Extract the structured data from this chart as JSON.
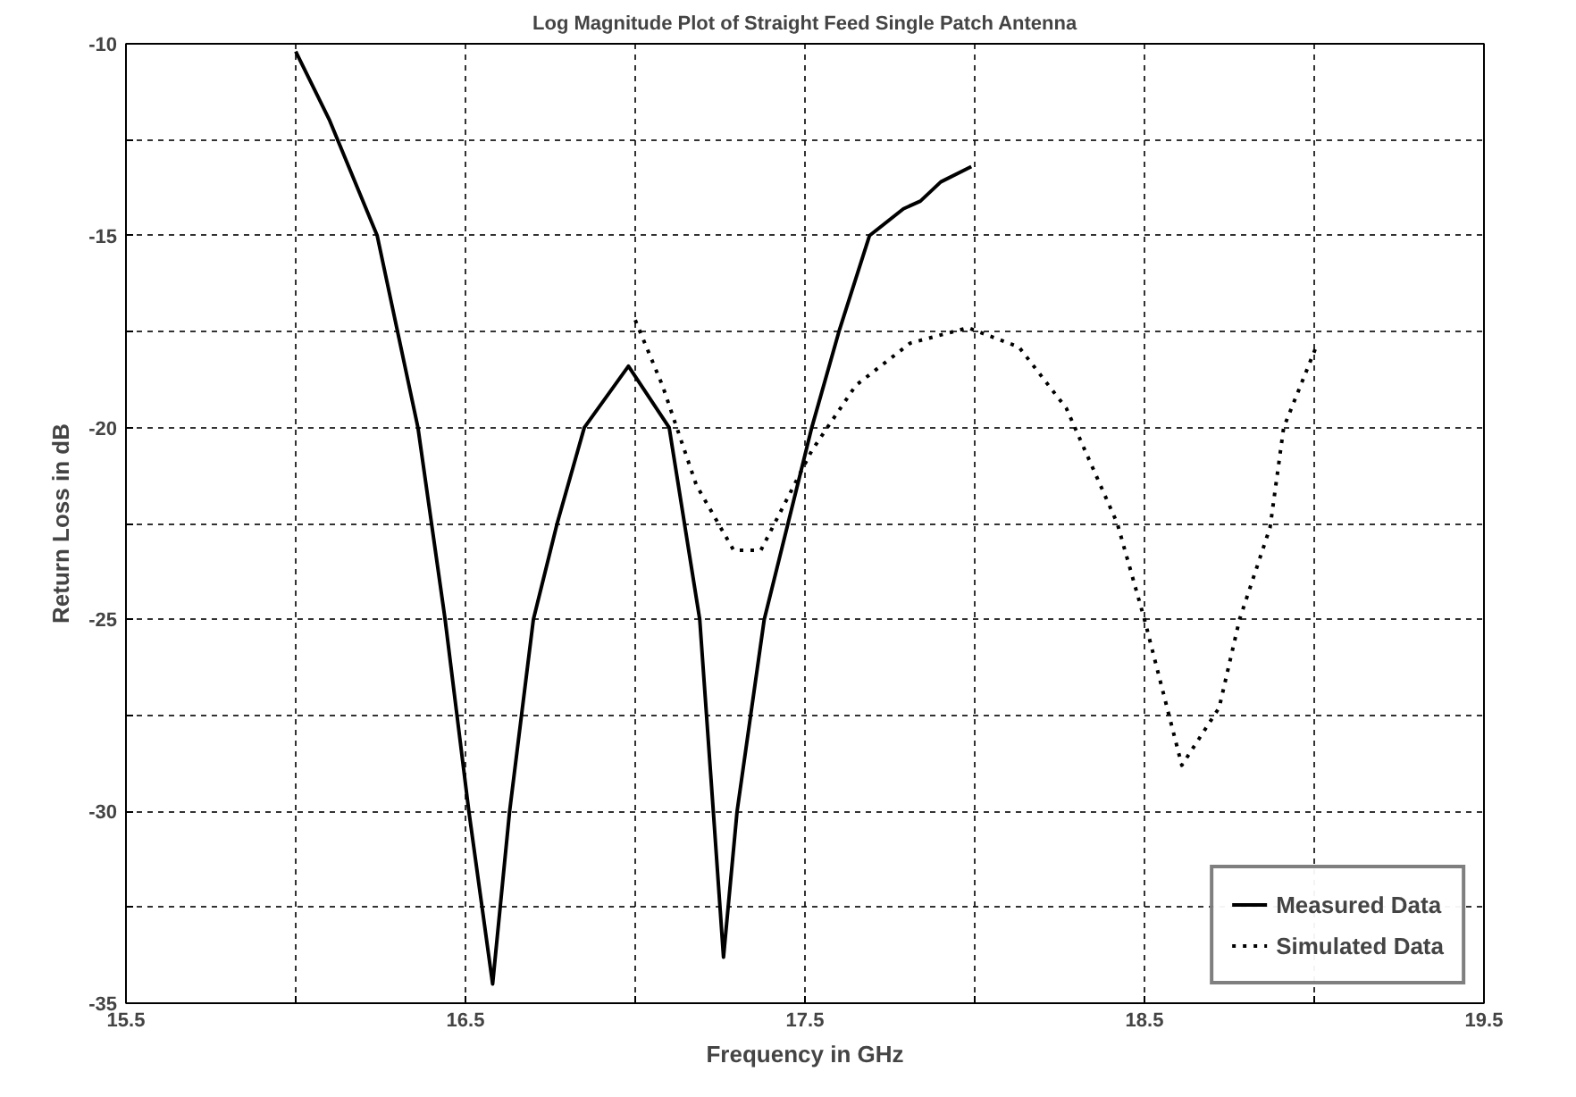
{
  "chart_data": {
    "type": "line",
    "title": "Log Magnitude Plot of Straight Feed Single Patch Antenna",
    "xlabel": "Frequency in GHz",
    "ylabel": "Return Loss in dB",
    "xlim": [
      15.5,
      19.5
    ],
    "ylim": [
      -35,
      -10
    ],
    "xticks": [
      15.5,
      {
        "value": 16,
        "label": null
      },
      16.5,
      {
        "value": 17,
        "label": null
      },
      17.5,
      {
        "value": 18,
        "label": null
      },
      18.5,
      {
        "value": 19,
        "label": null
      },
      19.5
    ],
    "yticks": [
      -35,
      {
        "value": -32.5,
        "label": null
      },
      -30,
      {
        "value": -27.5,
        "label": null
      },
      -25,
      {
        "value": -22.5,
        "label": null
      },
      -20,
      {
        "value": -17.5,
        "label": null
      },
      -15,
      {
        "value": -12.5,
        "label": null
      },
      -10
    ],
    "grid": true,
    "legend": "bottom right",
    "marker": "none",
    "series": [
      {
        "name": "Measured Data",
        "color": "#000000",
        "line_style": "solid",
        "x": [
          16.0,
          16.1,
          16.24,
          16.36,
          16.44,
          16.51,
          16.58,
          16.63,
          16.7,
          16.77,
          16.85,
          16.98,
          17.1,
          17.19,
          17.23,
          17.26,
          17.3,
          17.34,
          17.38,
          17.45,
          17.52,
          17.6,
          17.69,
          17.79,
          17.84,
          17.9,
          17.99
        ],
        "values": [
          -10.2,
          -12.0,
          -15,
          -20,
          -25,
          -30,
          -34.5,
          -30,
          -25,
          -22.5,
          -20,
          -18.4,
          -20,
          -25,
          -30,
          -33.8,
          -30,
          -27.5,
          -25,
          -22.5,
          -20,
          -17.5,
          -15,
          -14.3,
          -14.1,
          -13.6,
          -13.2
        ]
      },
      {
        "name": "Simulated Data",
        "color": "#000000",
        "line_style": "dotted",
        "x": [
          17.0,
          17.08,
          17.18,
          17.29,
          17.37,
          17.52,
          17.65,
          17.81,
          17.98,
          18.13,
          18.27,
          18.42,
          18.5,
          18.61,
          18.72,
          18.78,
          18.87,
          18.91,
          19.01
        ],
        "values": [
          -17.2,
          -18.9,
          -21.5,
          -23.2,
          -23.2,
          -20.6,
          -18.9,
          -17.8,
          -17.4,
          -17.9,
          -19.5,
          -22.5,
          -25,
          -28.8,
          -27.3,
          -25,
          -22.6,
          -20,
          -17.8
        ]
      }
    ]
  }
}
